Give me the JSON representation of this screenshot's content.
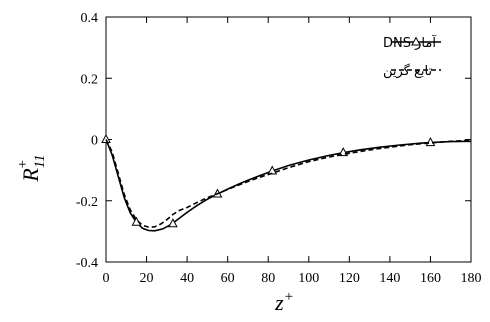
{
  "chart_data": {
    "type": "line",
    "title": "",
    "xlabel": "z",
    "xlabel_sup": "+",
    "ylabel": "R",
    "ylabel_sup": "+",
    "ylabel_sub": "11",
    "xlim": [
      0,
      180
    ],
    "ylim": [
      -0.4,
      0.4
    ],
    "xticks": [
      0,
      20,
      40,
      60,
      80,
      100,
      120,
      140,
      160,
      180
    ],
    "yticks": [
      0.4,
      0.2,
      0,
      -0.2,
      -0.4
    ],
    "ytick_labels": [
      "0.4",
      "0.2",
      "0",
      "-0.2",
      "-0.4"
    ],
    "grid": false,
    "legend_position": "top-right",
    "series": [
      {
        "name": "آمار DNS",
        "style": "solid",
        "color": "#000000",
        "marker": "triangle-open",
        "x": [
          0,
          3,
          6,
          9,
          12,
          15,
          18,
          21,
          24,
          28,
          32,
          36,
          40,
          45,
          50,
          55,
          60,
          65,
          70,
          75,
          82,
          90,
          100,
          110,
          117,
          125,
          135,
          145,
          155,
          160,
          170,
          180
        ],
        "y": [
          0.0,
          -0.05,
          -0.12,
          -0.19,
          -0.24,
          -0.27,
          -0.29,
          -0.297,
          -0.298,
          -0.292,
          -0.278,
          -0.258,
          -0.238,
          -0.215,
          -0.195,
          -0.178,
          -0.162,
          -0.147,
          -0.133,
          -0.12,
          -0.103,
          -0.085,
          -0.067,
          -0.052,
          -0.043,
          -0.034,
          -0.025,
          -0.018,
          -0.012,
          -0.01,
          -0.007,
          -0.006
        ],
        "markers_x": [
          0,
          15,
          33,
          55,
          82,
          117,
          160
        ],
        "markers_y": [
          0.0,
          -0.27,
          -0.275,
          -0.178,
          -0.103,
          -0.043,
          -0.01
        ]
      },
      {
        "name": "تابع گرین",
        "style": "dashed",
        "color": "#000000",
        "x": [
          0,
          3,
          6,
          9,
          12,
          15,
          18,
          21,
          24,
          27,
          30,
          33,
          36,
          40,
          45,
          50,
          55,
          60,
          65,
          70,
          75,
          82,
          90,
          100,
          110,
          120,
          130,
          140,
          150,
          160,
          170,
          180
        ],
        "y": [
          0.0,
          -0.04,
          -0.11,
          -0.18,
          -0.23,
          -0.262,
          -0.28,
          -0.286,
          -0.285,
          -0.276,
          -0.262,
          -0.245,
          -0.232,
          -0.222,
          -0.205,
          -0.19,
          -0.177,
          -0.163,
          -0.15,
          -0.137,
          -0.125,
          -0.11,
          -0.092,
          -0.072,
          -0.057,
          -0.045,
          -0.034,
          -0.025,
          -0.017,
          -0.011,
          -0.006,
          -0.003
        ]
      }
    ]
  }
}
